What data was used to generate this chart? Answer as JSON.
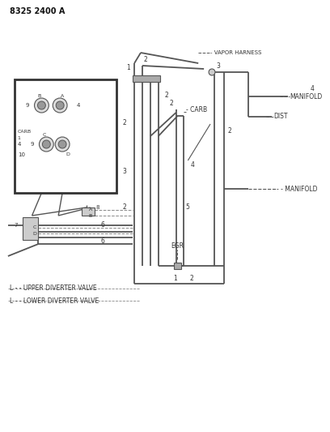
{
  "title": "8325 2400 A",
  "bg_color": "#ffffff",
  "lc": "#555555",
  "lc_dark": "#333333",
  "labels": {
    "vapor_harness": "- VAPOR HARNESS",
    "manifold_top": "MANIFOLD",
    "manifold_bot": "- - MANIFOLD",
    "carb": "- CARB",
    "dist": "DIST",
    "egr": "EGR",
    "upper_diverter": "L - - UPPER DIVERTER VALVE",
    "lower_diverter": "L - - LOWER DIVERTER VALVE"
  }
}
